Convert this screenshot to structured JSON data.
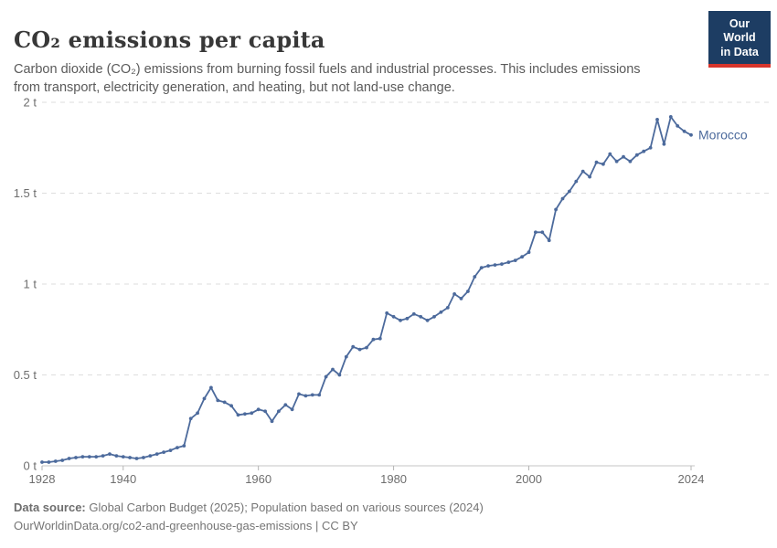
{
  "header": {
    "logo": {
      "line1": "Our World",
      "line2": "in Data",
      "bg_color": "#1d3d63",
      "accent_color": "#d7352c"
    }
  },
  "footer": {
    "source_label": "Data source:",
    "source_text": "Global Carbon Budget (2025); Population based on various sources (2024)",
    "link_line": "OurWorldinData.org/co2-and-greenhouse-gas-emissions | CC BY"
  },
  "chart_data": {
    "type": "line",
    "title": "CO₂ emissions per capita",
    "subtitle": "Carbon dioxide (CO₂) emissions from burning fossil fuels and industrial processes. This includes emissions from transport, electricity generation, and heating, but not land-use change.",
    "unit": "t",
    "grid": true,
    "legend_position": "end-of-line-label",
    "x": {
      "start_year": 1928,
      "end_year": 2024,
      "ticks": [
        {
          "value": 1928,
          "label": "1928"
        },
        {
          "value": 1940,
          "label": "1940"
        },
        {
          "value": 1960,
          "label": "1960"
        },
        {
          "value": 1980,
          "label": "1980"
        },
        {
          "value": 2000,
          "label": "2000"
        },
        {
          "value": 2024,
          "label": "2024"
        }
      ]
    },
    "y": {
      "min": 0,
      "max": 2,
      "ticks": [
        {
          "value": 0,
          "label": "0 t"
        },
        {
          "value": 0.5,
          "label": "0.5 t"
        },
        {
          "value": 1,
          "label": "1 t"
        },
        {
          "value": 1.5,
          "label": "1.5 t"
        },
        {
          "value": 2,
          "label": "2 t"
        }
      ]
    },
    "series": [
      {
        "name": "Morocco",
        "color": "#4C6A9C",
        "start_year": 1928,
        "values": [
          0.02,
          0.02,
          0.025,
          0.03,
          0.04,
          0.045,
          0.05,
          0.05,
          0.05,
          0.055,
          0.065,
          0.055,
          0.05,
          0.045,
          0.04,
          0.045,
          0.055,
          0.065,
          0.075,
          0.085,
          0.1,
          0.11,
          0.26,
          0.29,
          0.37,
          0.43,
          0.36,
          0.35,
          0.33,
          0.28,
          0.285,
          0.29,
          0.31,
          0.3,
          0.245,
          0.3,
          0.335,
          0.31,
          0.395,
          0.385,
          0.39,
          0.39,
          0.49,
          0.53,
          0.5,
          0.6,
          0.655,
          0.64,
          0.65,
          0.695,
          0.7,
          0.84,
          0.82,
          0.8,
          0.81,
          0.835,
          0.82,
          0.8,
          0.82,
          0.845,
          0.87,
          0.945,
          0.92,
          0.96,
          1.04,
          1.09,
          1.1,
          1.105,
          1.11,
          1.12,
          1.13,
          1.15,
          1.175,
          1.285,
          1.285,
          1.24,
          1.41,
          1.47,
          1.51,
          1.565,
          1.62,
          1.59,
          1.67,
          1.66,
          1.715,
          1.675,
          1.7,
          1.675,
          1.71,
          1.73,
          1.75,
          1.905,
          1.77,
          1.92,
          1.87,
          1.84,
          1.82
        ]
      }
    ]
  }
}
